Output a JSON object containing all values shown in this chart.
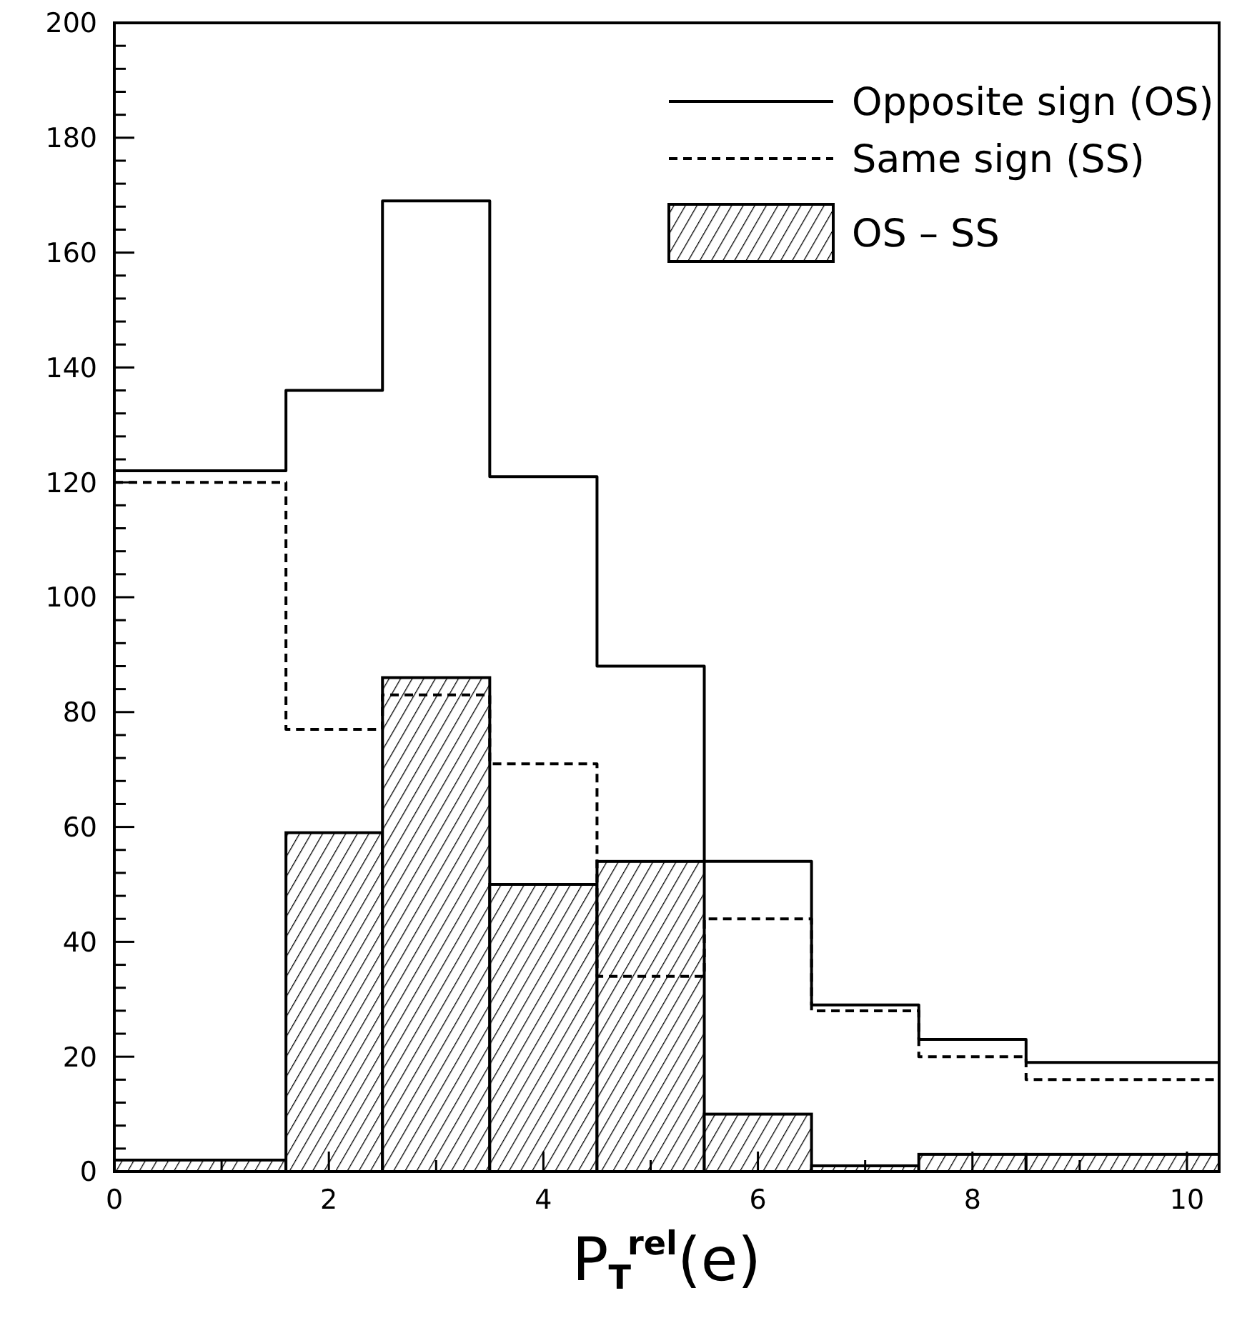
{
  "chart_data": {
    "type": "histogram",
    "xlabel": "P$_{T}$$^{rel}$(e)",
    "bins": [
      0,
      1.6,
      2.5,
      3.5,
      4.5,
      5.5,
      6.5,
      7.5,
      8.5,
      10.3
    ],
    "series": [
      {
        "name": "Opposite sign (OS)",
        "type": "step",
        "color": "#000000",
        "line_style": "solid",
        "x": [
          0,
          1.6,
          2.5,
          3.5,
          4.5,
          5.5,
          6.5,
          7.5,
          8.5,
          10.3
        ],
        "values": [
          122,
          136,
          169,
          121,
          88,
          54,
          29,
          23,
          19,
          19
        ]
      },
      {
        "name": "Same sign (SS)",
        "type": "step",
        "color": "#000000",
        "line_style": "dashed",
        "x": [
          0,
          1.6,
          2.5,
          3.5,
          4.5,
          5.5,
          6.5,
          7.5,
          8.5,
          10.3
        ],
        "values": [
          120,
          77,
          83,
          71,
          34,
          44,
          28,
          20,
          16,
          16
        ]
      },
      {
        "name": "OS – SS",
        "color": "#000000",
        "values": [
          2,
          59,
          86,
          50,
          54,
          10,
          1,
          3,
          3
        ]
      }
    ],
    "xlim": [
      0,
      10.3
    ],
    "xticks": [
      0,
      {
        "value": 1,
        "label": null
      },
      2,
      {
        "value": 3,
        "label": null
      },
      4,
      {
        "value": 5,
        "label": null
      },
      6,
      {
        "value": 7,
        "label": null
      },
      8,
      {
        "value": 9,
        "label": null
      },
      10
    ],
    "ylim": [
      0,
      200
    ],
    "yticks": [
      0,
      {
        "value": 4,
        "label": null
      },
      {
        "value": 8,
        "label": null
      },
      {
        "value": 12,
        "label": null
      },
      {
        "value": 16,
        "label": null
      },
      20,
      {
        "value": 24,
        "label": null
      },
      {
        "value": 28,
        "label": null
      },
      {
        "value": 32,
        "label": null
      },
      {
        "value": 36,
        "label": null
      },
      40,
      {
        "value": 44,
        "label": null
      },
      {
        "value": 48,
        "label": null
      },
      {
        "value": 52,
        "label": null
      },
      {
        "value": 56,
        "label": null
      },
      60,
      {
        "value": 64,
        "label": null
      },
      {
        "value": 68,
        "label": null
      },
      {
        "value": 72,
        "label": null
      },
      {
        "value": 76,
        "label": null
      },
      80,
      {
        "value": 84,
        "label": null
      },
      {
        "value": 88,
        "label": null
      },
      {
        "value": 92,
        "label": null
      },
      {
        "value": 96,
        "label": null
      },
      100,
      {
        "value": 104,
        "label": null
      },
      {
        "value": 108,
        "label": null
      },
      {
        "value": 112,
        "label": null
      },
      {
        "value": 116,
        "label": null
      },
      120,
      {
        "value": 124,
        "label": null
      },
      {
        "value": 128,
        "label": null
      },
      {
        "value": 132,
        "label": null
      },
      {
        "value": 136,
        "label": null
      },
      140,
      {
        "value": 144,
        "label": null
      },
      {
        "value": 148,
        "label": null
      },
      {
        "value": 152,
        "label": null
      },
      {
        "value": 156,
        "label": null
      },
      160,
      {
        "value": 164,
        "label": null
      },
      {
        "value": 168,
        "label": null
      },
      {
        "value": 172,
        "label": null
      },
      {
        "value": 176,
        "label": null
      },
      180,
      {
        "value": 184,
        "label": null
      },
      {
        "value": 188,
        "label": null
      },
      {
        "value": 192,
        "label": null
      },
      {
        "value": 196,
        "label": null
      },
      200
    ],
    "grid": false,
    "legend": "top right"
  }
}
